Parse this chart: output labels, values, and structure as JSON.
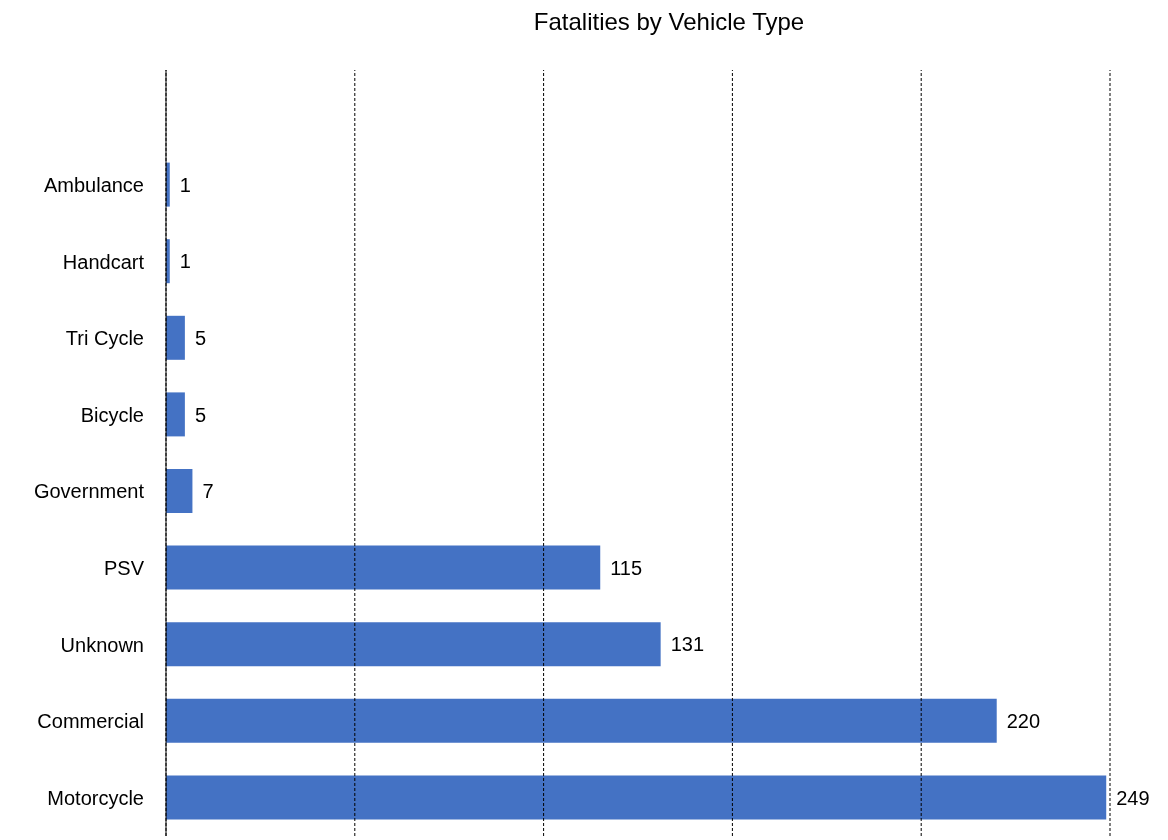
{
  "chart_data": {
    "type": "bar",
    "orientation": "horizontal",
    "title": "Fatalities by Vehicle Type",
    "categories": [
      null,
      "Ambulance",
      "Handcart",
      "Tri Cycle",
      "Bicycle",
      "Government",
      "PSV",
      "Unknown",
      "Commercial",
      "Motorcycle"
    ],
    "values": [
      null,
      1,
      1,
      5,
      5,
      7,
      115,
      131,
      220,
      249
    ],
    "color": "#4472c4",
    "xlim": [
      0,
      250
    ],
    "xticks": [
      {
        "value": 0,
        "label": null
      },
      {
        "value": 50,
        "label": null
      },
      {
        "value": 100,
        "label": null
      },
      {
        "value": 150,
        "label": null
      },
      {
        "value": 200,
        "label": null
      },
      {
        "value": 250,
        "label": null
      }
    ],
    "grid": "x",
    "tick_labels": "y",
    "data_labels": true
  }
}
